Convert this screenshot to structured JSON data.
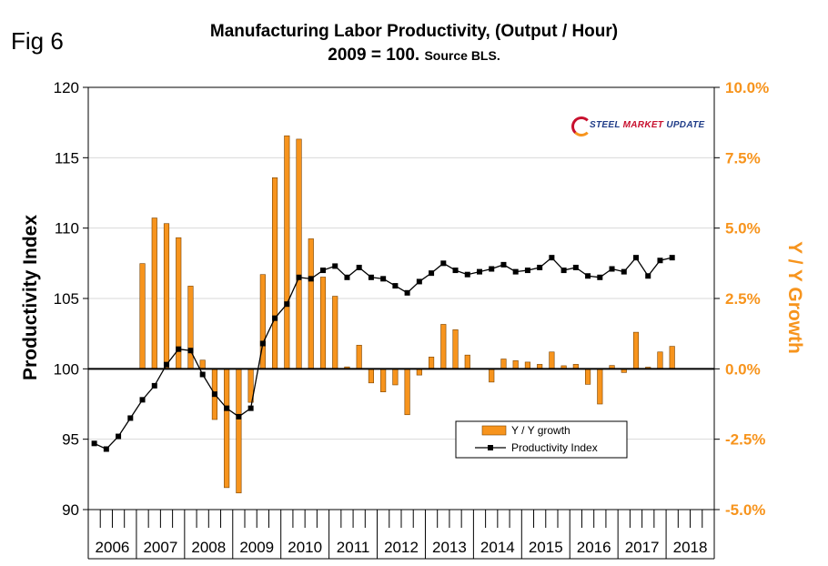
{
  "figure_label": "Fig 6",
  "title_line1": "Manufacturing Labor Productivity, (Output / Hour)",
  "title_line2_main": "2009 = 100.",
  "title_line2_source": "Source BLS.",
  "logo": {
    "word1": "STEEL",
    "word2": "MARKET",
    "word3": "UPDATE"
  },
  "colors": {
    "bar": "#F7941D",
    "bar_edge": "#7a4300",
    "line": "#000000",
    "right_axis": "#F7941D",
    "grid": "#d9d9d9"
  },
  "chart_data": {
    "type": "bar+line",
    "left_axis": {
      "label": "Productivity Index",
      "min": 90,
      "max": 120,
      "ticks": [
        "90",
        "95",
        "100",
        "105",
        "110",
        "115",
        "120"
      ]
    },
    "right_axis": {
      "label": "Y / Y Growth",
      "min": -5.0,
      "max": 10.0,
      "ticks": [
        "-5.0%",
        "-2.5%",
        "0.0%",
        "2.5%",
        "5.0%",
        "7.5%",
        "10.0%"
      ]
    },
    "years": [
      "2006",
      "2007",
      "2008",
      "2009",
      "2010",
      "2011",
      "2012",
      "2013",
      "2014",
      "2015",
      "2016",
      "2017",
      "2018"
    ],
    "quarters_per_year": 4,
    "legend": {
      "bar_label": "Y / Y growth",
      "line_label": "Productivity Index"
    },
    "productivity_index": [
      94.7,
      94.3,
      95.2,
      96.5,
      97.8,
      98.8,
      100.3,
      101.4,
      101.3,
      99.6,
      98.2,
      97.2,
      96.6,
      97.2,
      101.8,
      103.6,
      104.6,
      106.5,
      106.4,
      107.0,
      107.3,
      106.5,
      107.2,
      106.5,
      106.4,
      105.9,
      105.4,
      106.2,
      106.8,
      107.5,
      107.0,
      106.7,
      106.9,
      107.1,
      107.4,
      106.9,
      107.0,
      107.2,
      107.9,
      107.0,
      107.2,
      106.6,
      106.5,
      107.1,
      106.9,
      107.9,
      106.6,
      107.7,
      107.9
    ],
    "yy_growth_pct": [
      null,
      null,
      null,
      null,
      3.74,
      5.36,
      5.16,
      4.66,
      2.94,
      0.31,
      -1.8,
      -4.22,
      -4.41,
      -1.19,
      3.35,
      6.79,
      8.28,
      8.16,
      4.62,
      3.26,
      2.58,
      0.07,
      0.84,
      -0.5,
      -0.82,
      -0.57,
      -1.63,
      -0.22,
      0.42,
      1.58,
      1.39,
      0.49,
      0.0,
      -0.47,
      0.35,
      0.29,
      0.24,
      0.16,
      0.6,
      0.11,
      0.16,
      -0.55,
      -1.25,
      0.12,
      -0.13,
      1.3,
      0.06,
      0.6,
      0.8
    ]
  }
}
